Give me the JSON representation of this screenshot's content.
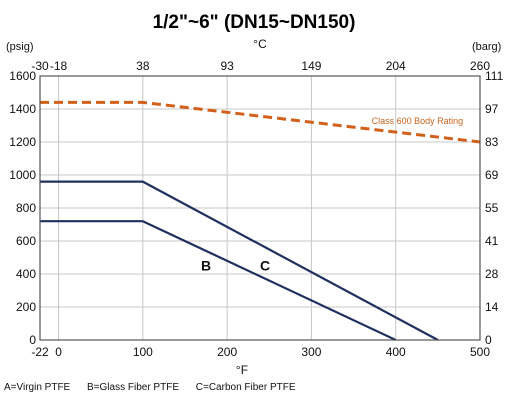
{
  "chart_data": {
    "type": "line",
    "title": "1/2\"~6\"  (DN15~DN150)",
    "x_bottom": {
      "label": "°F",
      "ticks": [
        "-22",
        "0",
        "100",
        "200",
        "300",
        "400",
        "500"
      ],
      "range": [
        -22,
        500
      ]
    },
    "x_top": {
      "label": "°C",
      "ticks": [
        "-30",
        "-18",
        "38",
        "93",
        "149",
        "204",
        "260"
      ]
    },
    "y_left": {
      "label": "(psig)",
      "ticks": [
        "0",
        "200",
        "400",
        "600",
        "800",
        "1000",
        "1200",
        "1400",
        "1600"
      ],
      "range": [
        0,
        1600
      ]
    },
    "y_right": {
      "label": "(barg)",
      "ticks": [
        "0",
        "14",
        "28",
        "41",
        "55",
        "69",
        "83",
        "97",
        "111"
      ]
    },
    "grid": true,
    "series": [
      {
        "label": "B",
        "color": "#1f2f5e",
        "style": "solid",
        "x": [
          -22,
          100,
          400
        ],
        "y": [
          720,
          720,
          0
        ]
      },
      {
        "label": "C",
        "color": "#1f2f5e",
        "style": "solid",
        "x": [
          -22,
          100,
          450
        ],
        "y": [
          960,
          960,
          0
        ]
      },
      {
        "label": "Class 600 Body Rating",
        "color": "#d2601a",
        "style": "dashed",
        "x": [
          -22,
          100,
          500
        ],
        "y": [
          1440,
          1440,
          1200
        ]
      }
    ],
    "legend": [
      "A=Virgin PTFE",
      "B=Glass Fiber PTFE",
      "C=Carbon Fiber PTFE"
    ]
  }
}
